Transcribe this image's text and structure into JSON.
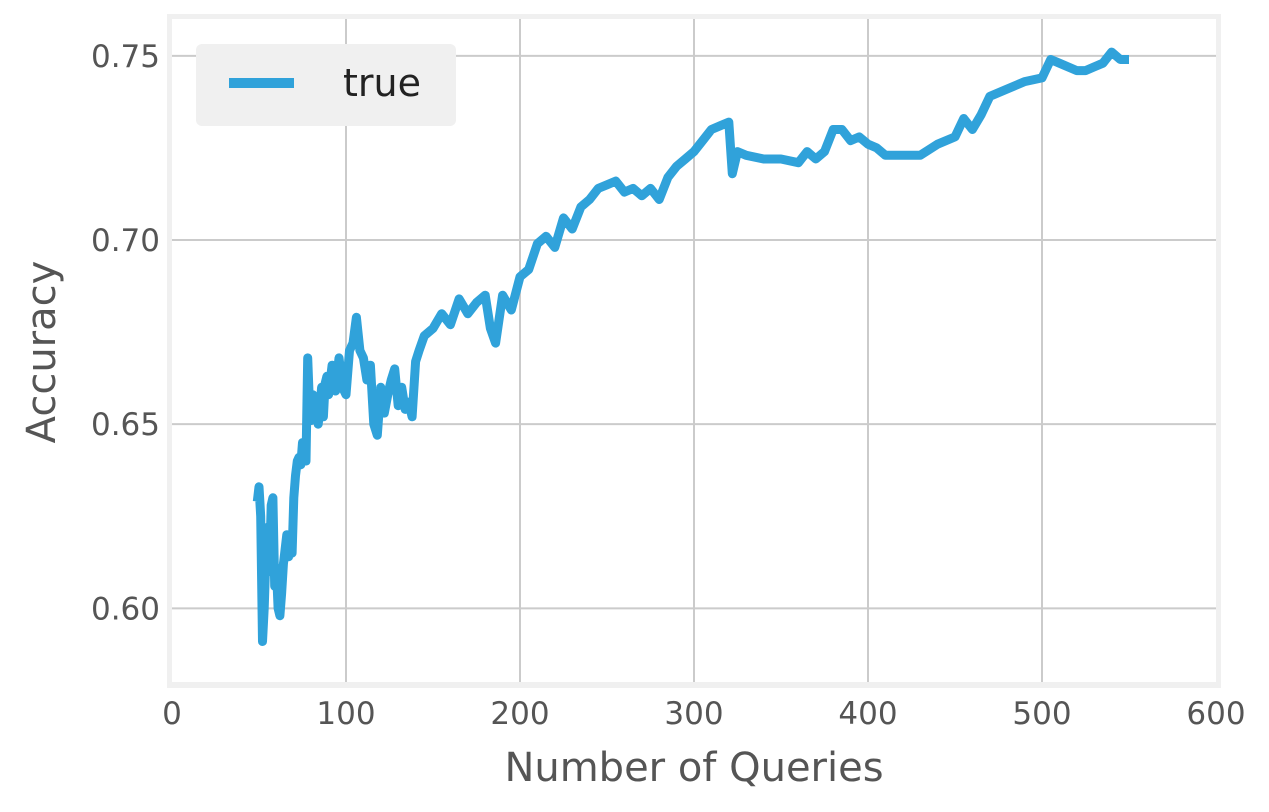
{
  "chart_data": {
    "type": "line",
    "title": "",
    "xlabel": "Number of Queries",
    "ylabel": "Accuracy",
    "xlim": [
      0,
      600
    ],
    "ylim": [
      0.58,
      0.76
    ],
    "xticks": [
      0,
      100,
      200,
      300,
      400,
      500,
      600
    ],
    "xtick_labels": [
      "0",
      "100",
      "200",
      "300",
      "400",
      "500",
      "600"
    ],
    "yticks": [
      0.6,
      0.65,
      0.7,
      0.75
    ],
    "ytick_labels": [
      "0.60",
      "0.65",
      "0.70",
      "0.75"
    ],
    "grid": true,
    "legend_position": "top-left",
    "background_color": "#f0f0f0",
    "plot_color": "#ffffff",
    "grid_color": "#cbcbcb",
    "series": [
      {
        "name": "true",
        "color": "#30a2da",
        "x": [
          49,
          50,
          51,
          52,
          53,
          54,
          55,
          56,
          57,
          58,
          59,
          60,
          61,
          62,
          63,
          64,
          65,
          66,
          67,
          68,
          69,
          70,
          71,
          72,
          73,
          74,
          75,
          76,
          77,
          78,
          79,
          80,
          81,
          82,
          83,
          84,
          85,
          86,
          87,
          88,
          89,
          90,
          92,
          94,
          96,
          98,
          100,
          102,
          104,
          106,
          108,
          110,
          112,
          114,
          116,
          118,
          120,
          122,
          124,
          126,
          128,
          130,
          132,
          134,
          136,
          138,
          140,
          142,
          145,
          150,
          155,
          160,
          165,
          170,
          175,
          180,
          183,
          186,
          190,
          195,
          200,
          205,
          210,
          215,
          220,
          225,
          230,
          235,
          240,
          245,
          250,
          255,
          260,
          265,
          270,
          275,
          280,
          285,
          290,
          295,
          300,
          305,
          310,
          315,
          320,
          322,
          325,
          330,
          340,
          350,
          360,
          365,
          370,
          375,
          380,
          385,
          390,
          395,
          400,
          405,
          410,
          420,
          430,
          440,
          450,
          455,
          460,
          465,
          470,
          480,
          490,
          500,
          505,
          510,
          520,
          525,
          530,
          535,
          540,
          545,
          550
        ],
        "y": [
          0.629,
          0.633,
          0.625,
          0.591,
          0.6,
          0.615,
          0.622,
          0.61,
          0.628,
          0.63,
          0.606,
          0.611,
          0.6,
          0.598,
          0.604,
          0.612,
          0.616,
          0.62,
          0.614,
          0.619,
          0.615,
          0.63,
          0.636,
          0.64,
          0.641,
          0.639,
          0.645,
          0.642,
          0.64,
          0.668,
          0.655,
          0.651,
          0.658,
          0.655,
          0.656,
          0.65,
          0.654,
          0.66,
          0.652,
          0.661,
          0.663,
          0.658,
          0.666,
          0.659,
          0.668,
          0.66,
          0.658,
          0.67,
          0.672,
          0.679,
          0.67,
          0.668,
          0.662,
          0.666,
          0.65,
          0.647,
          0.66,
          0.653,
          0.658,
          0.662,
          0.665,
          0.655,
          0.66,
          0.654,
          0.656,
          0.652,
          0.667,
          0.67,
          0.674,
          0.676,
          0.68,
          0.677,
          0.684,
          0.68,
          0.683,
          0.685,
          0.676,
          0.672,
          0.685,
          0.681,
          0.69,
          0.692,
          0.699,
          0.701,
          0.698,
          0.706,
          0.703,
          0.709,
          0.711,
          0.714,
          0.715,
          0.716,
          0.713,
          0.714,
          0.712,
          0.714,
          0.711,
          0.717,
          0.72,
          0.722,
          0.724,
          0.727,
          0.73,
          0.731,
          0.732,
          0.718,
          0.724,
          0.723,
          0.722,
          0.722,
          0.721,
          0.724,
          0.722,
          0.724,
          0.73,
          0.73,
          0.727,
          0.728,
          0.726,
          0.725,
          0.723,
          0.723,
          0.723,
          0.726,
          0.728,
          0.733,
          0.73,
          0.734,
          0.739,
          0.741,
          0.743,
          0.744,
          0.749,
          0.748,
          0.746,
          0.746,
          0.747,
          0.748,
          0.751,
          0.749,
          0.749
        ]
      }
    ]
  }
}
